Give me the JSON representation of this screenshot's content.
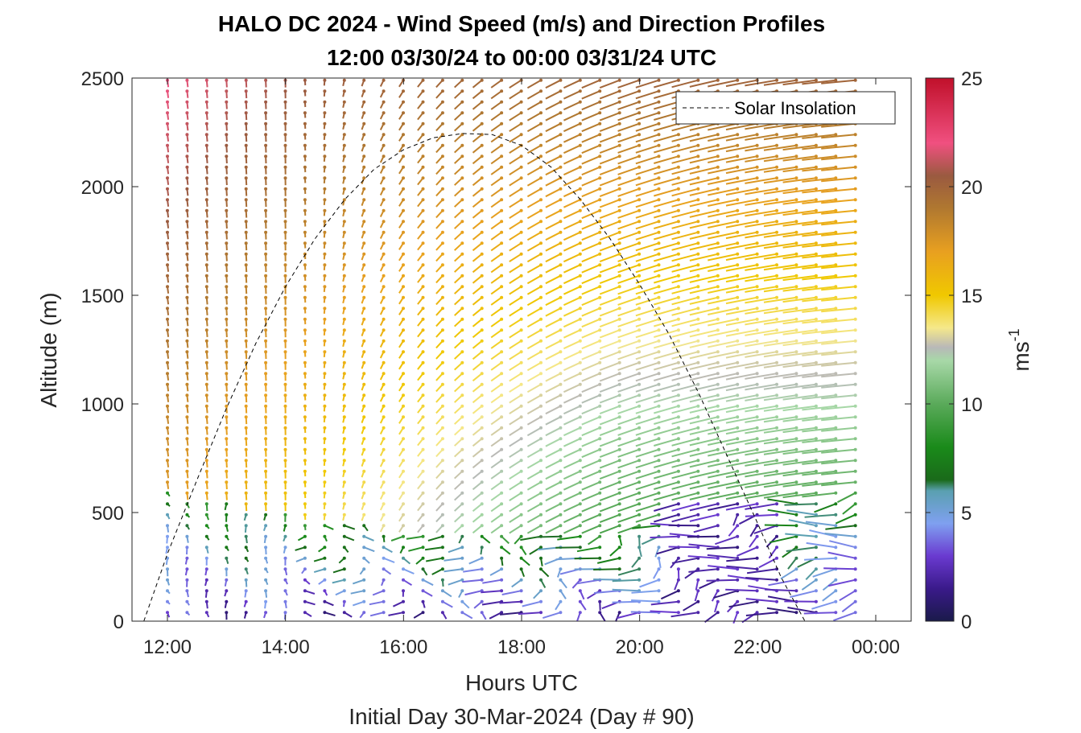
{
  "chart_data": {
    "type": "quiver",
    "title": "HALO DC 2024 - Wind Speed (m/s) and Direction Profiles",
    "subtitle": "12:00 03/30/24 to 00:00 03/31/24  UTC",
    "xlabel": "Hours UTC",
    "ylabel": "Altitude (m)",
    "footer": "Initial Day 30-Mar-2024 (Day # 90)",
    "colorbar_label": "ms",
    "colorbar_label_exp": "-1",
    "xlim": [
      11.4,
      24.6
    ],
    "ylim": [
      0,
      2500
    ],
    "x_ticks": [
      {
        "value": 12,
        "label": "12:00"
      },
      {
        "value": 14,
        "label": "14:00"
      },
      {
        "value": 16,
        "label": "16:00"
      },
      {
        "value": 18,
        "label": "18:00"
      },
      {
        "value": 20,
        "label": "20:00"
      },
      {
        "value": 22,
        "label": "22:00"
      },
      {
        "value": 24,
        "label": "00:00"
      }
    ],
    "y_ticks": [
      {
        "value": 0,
        "label": "0"
      },
      {
        "value": 500,
        "label": "500"
      },
      {
        "value": 1000,
        "label": "1000"
      },
      {
        "value": 1500,
        "label": "1500"
      },
      {
        "value": 2000,
        "label": "2000"
      },
      {
        "value": 2500,
        "label": "2500"
      }
    ],
    "colorbar_range": [
      0,
      25
    ],
    "colorbar_ticks": [
      {
        "value": 0,
        "label": "0"
      },
      {
        "value": 5,
        "label": "5"
      },
      {
        "value": 10,
        "label": "10"
      },
      {
        "value": 15,
        "label": "15"
      },
      {
        "value": 20,
        "label": "20"
      },
      {
        "value": 25,
        "label": "25"
      }
    ],
    "colormap": [
      {
        "v": 0,
        "c": "#1a1a4a"
      },
      {
        "v": 1.5,
        "c": "#3a1a8a"
      },
      {
        "v": 3,
        "c": "#6a3ad0"
      },
      {
        "v": 4.5,
        "c": "#7fa0f0"
      },
      {
        "v": 6,
        "c": "#5aa0b0"
      },
      {
        "v": 6.5,
        "c": "#1a6a1a"
      },
      {
        "v": 8,
        "c": "#1a8a1a"
      },
      {
        "v": 10,
        "c": "#5aaa5a"
      },
      {
        "v": 12,
        "c": "#a8d8a8"
      },
      {
        "v": 12.6,
        "c": "#b8b8b8"
      },
      {
        "v": 13.5,
        "c": "#f5e88a"
      },
      {
        "v": 15,
        "c": "#f0c800"
      },
      {
        "v": 17,
        "c": "#e8a020"
      },
      {
        "v": 19,
        "c": "#b07830"
      },
      {
        "v": 20.5,
        "c": "#9a5a40"
      },
      {
        "v": 22,
        "c": "#f05080"
      },
      {
        "v": 25,
        "c": "#c0102a"
      }
    ],
    "legend": {
      "label": "Solar Insolation",
      "position": "top-right",
      "style": "dashed"
    },
    "solar_insolation_curve": {
      "x": [
        11.6,
        12.0,
        12.5,
        13.0,
        13.5,
        14.0,
        14.5,
        15.0,
        15.5,
        16.0,
        16.5,
        17.0,
        17.5,
        18.0,
        18.5,
        19.0,
        19.5,
        20.0,
        20.5,
        21.0,
        21.5,
        22.0,
        22.4,
        22.8,
        23.1,
        23.3,
        24.6
      ],
      "y": [
        0,
        310,
        650,
        980,
        1280,
        1540,
        1760,
        1940,
        2080,
        2170,
        2225,
        2245,
        2240,
        2190,
        2090,
        1940,
        1760,
        1550,
        1320,
        1050,
        750,
        450,
        200,
        0,
        0,
        0,
        0
      ]
    },
    "wind_columns": {
      "start_hour": 12.0,
      "step_hour": 0.333,
      "count": 36,
      "altitude_start": 40,
      "altitude_step": 50,
      "altitude_max": 2500
    }
  }
}
